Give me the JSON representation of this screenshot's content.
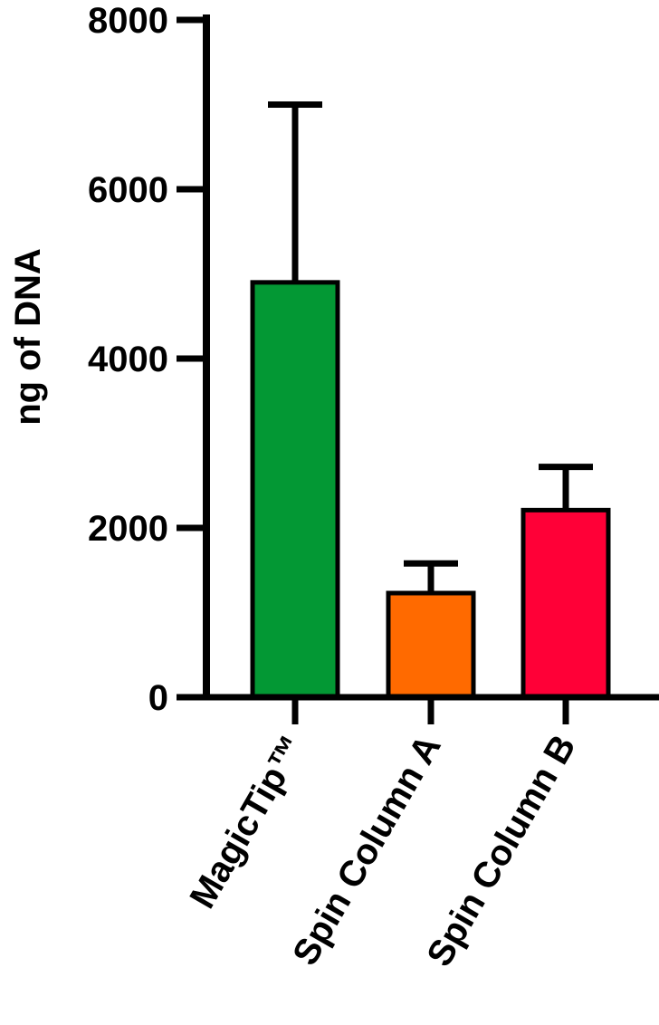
{
  "chart_data": {
    "type": "bar",
    "y_label": "ng of DNA",
    "categories": [
      "MagicTip™",
      "Spin Column A",
      "Spin Column B"
    ],
    "values": [
      4900,
      1230,
      2210
    ],
    "errors": [
      2100,
      350,
      510
    ],
    "colors": [
      "#039834",
      "#ff6a00",
      "#ff0037"
    ],
    "ylim": [
      0,
      8000
    ],
    "yticks": [
      0,
      2000,
      4000,
      6000,
      8000
    ]
  }
}
